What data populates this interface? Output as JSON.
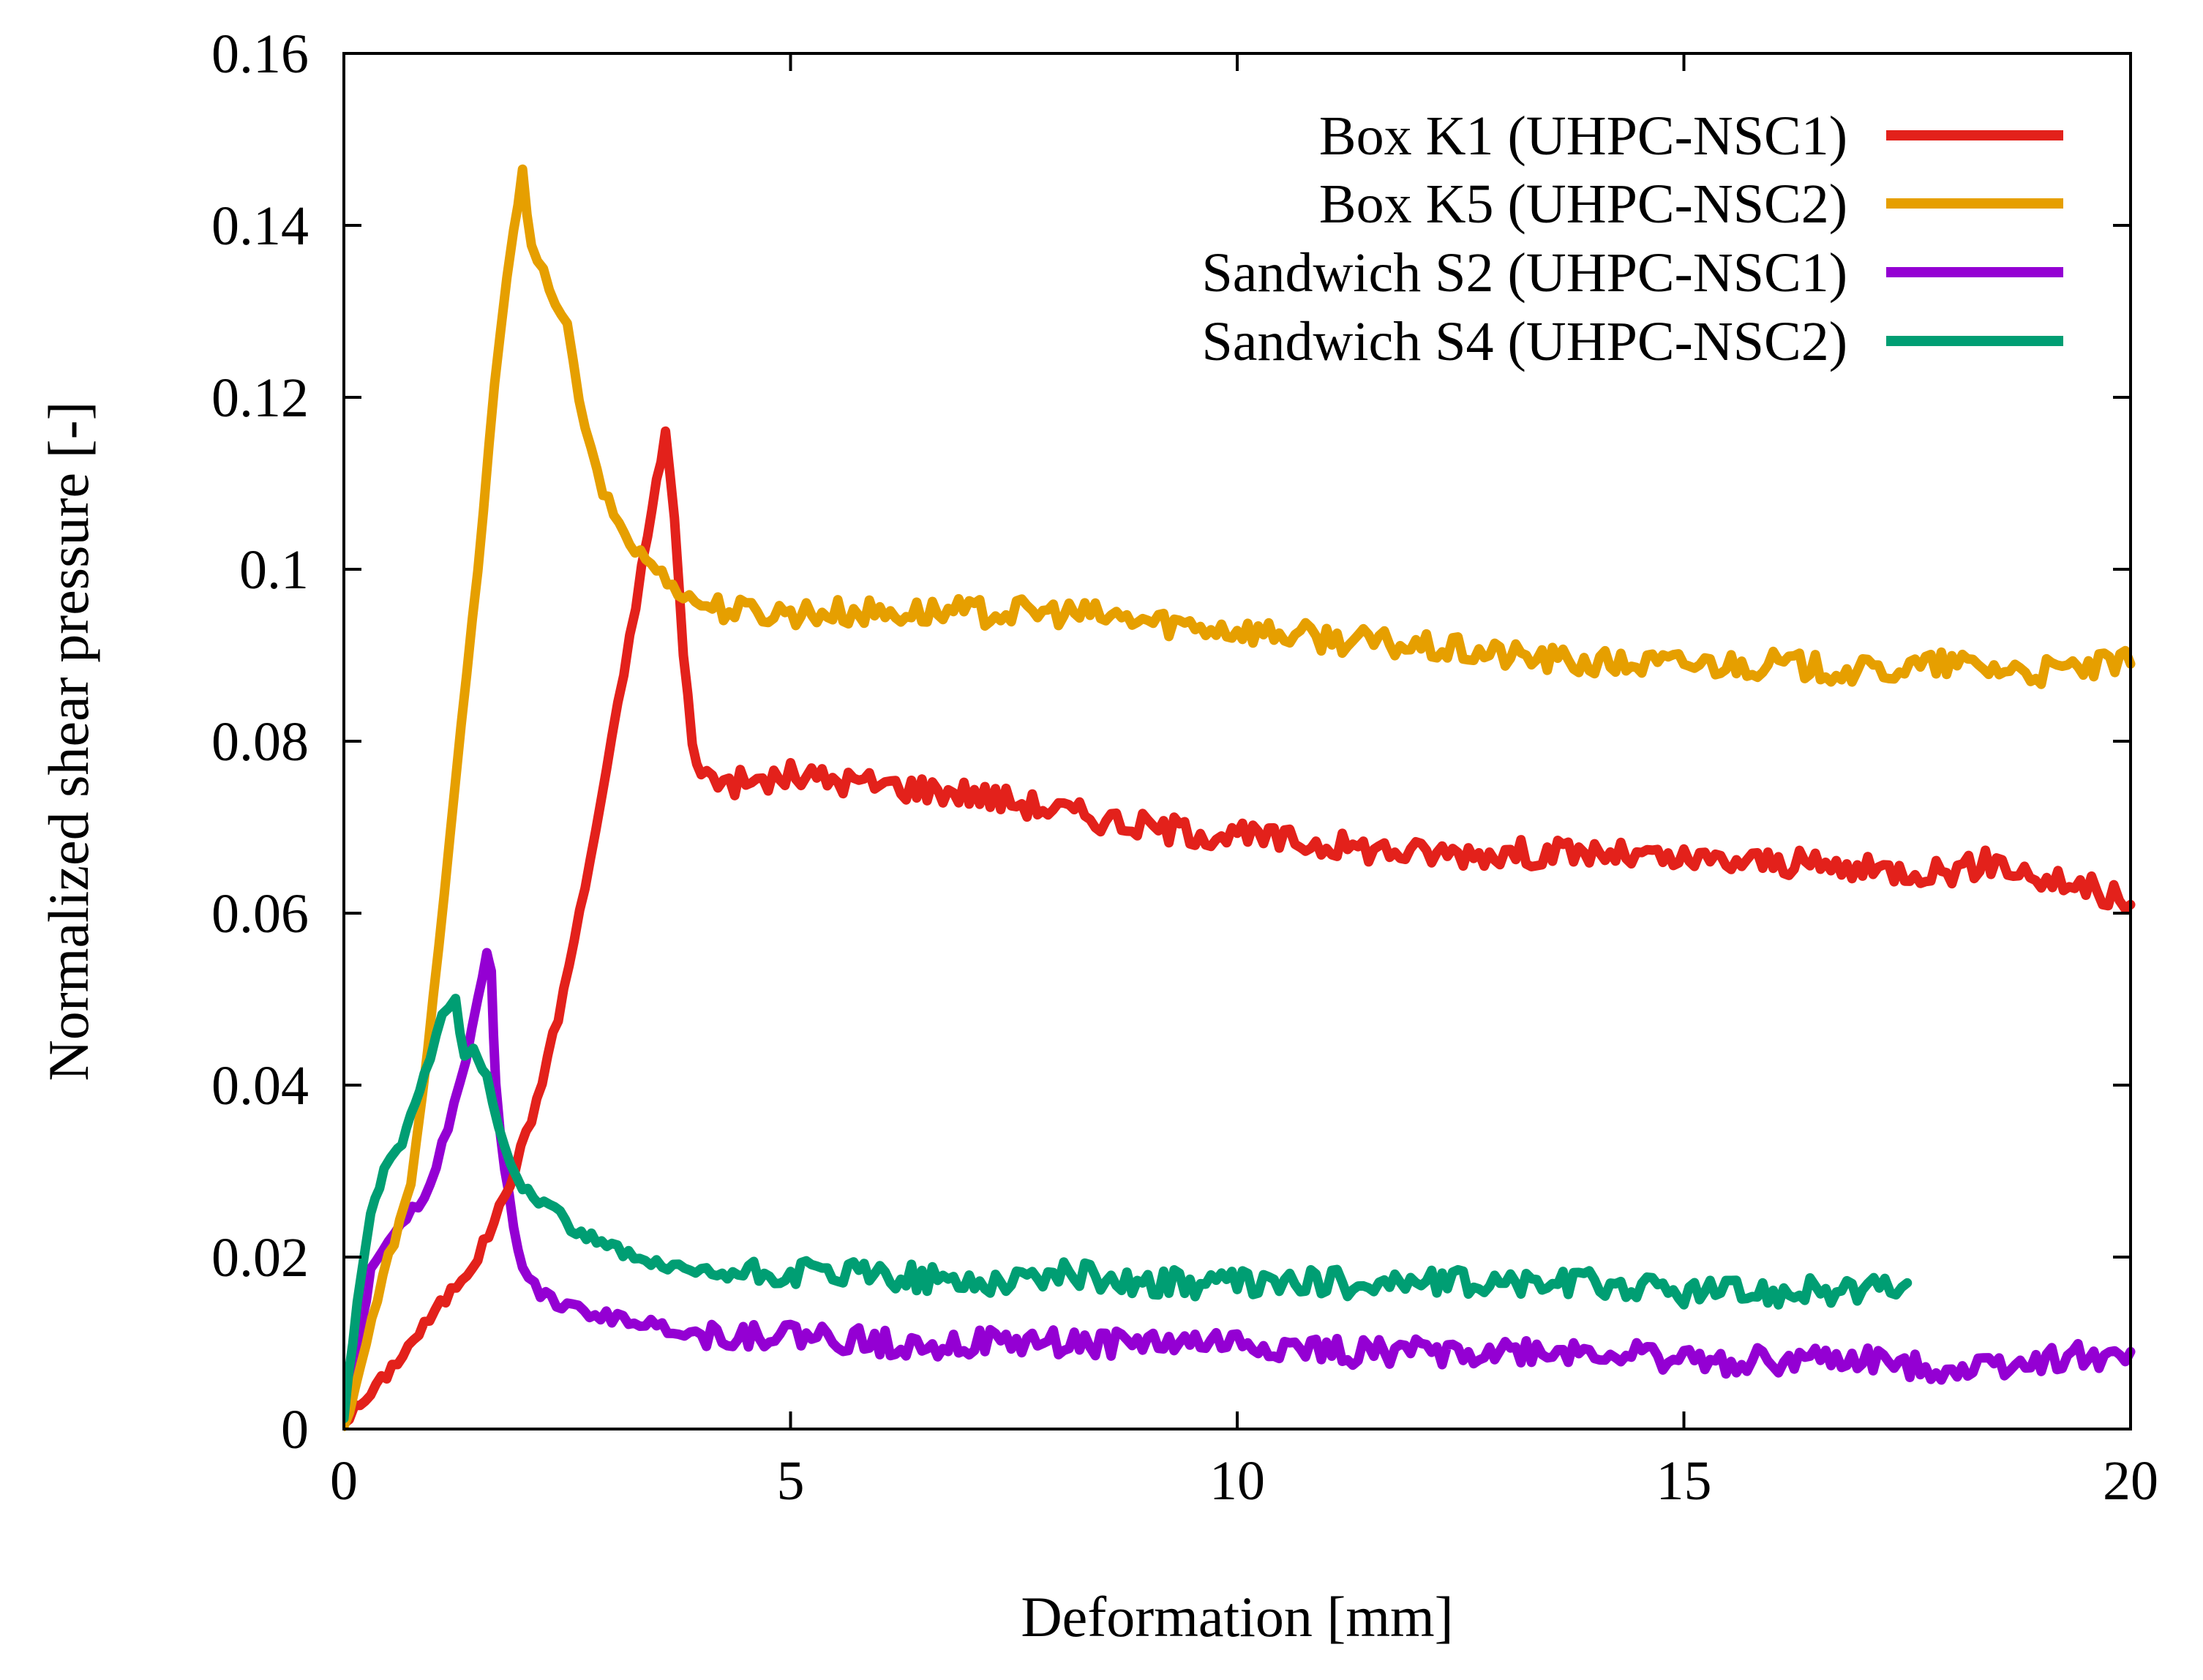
{
  "chart_data": {
    "type": "line",
    "title": "",
    "xlabel": "Deformation [mm]",
    "ylabel": "Normalized shear pressure [-]",
    "xlim": [
      0,
      20
    ],
    "ylim": [
      0,
      0.16
    ],
    "xticks": [
      0,
      5,
      10,
      15,
      20
    ],
    "xtick_labels": [
      "0",
      "5",
      "10",
      "15",
      "20"
    ],
    "yticks": [
      0,
      0.02,
      0.04,
      0.06,
      0.08,
      0.1,
      0.12,
      0.14,
      0.16
    ],
    "ytick_labels": [
      "0",
      "0.02",
      "0.04",
      "0.06",
      "0.08",
      "0.1",
      "0.12",
      "0.14",
      "0.16"
    ],
    "grid": false,
    "legend_position": "top-right",
    "series": [
      {
        "name": "Box K1 (UHPC-NSC1)",
        "color": "#e3211b",
        "x": [
          0,
          0.3,
          0.6,
          0.9,
          1.2,
          1.5,
          1.8,
          2.1,
          2.4,
          2.7,
          3.0,
          3.2,
          3.4,
          3.5,
          3.6,
          3.7,
          3.8,
          3.9,
          4.0,
          4.5,
          5.0,
          6.0,
          7.0,
          8.0,
          9.0,
          10.0,
          11.0,
          12.0,
          13.0,
          14.0,
          15.0,
          16.0,
          17.0,
          18.0,
          18.5,
          19.0,
          19.5,
          20.0
        ],
        "y": [
          0.001,
          0.004,
          0.008,
          0.012,
          0.016,
          0.02,
          0.027,
          0.036,
          0.048,
          0.063,
          0.08,
          0.092,
          0.104,
          0.11,
          0.116,
          0.106,
          0.09,
          0.08,
          0.076,
          0.075,
          0.076,
          0.075,
          0.074,
          0.072,
          0.07,
          0.069,
          0.068,
          0.067,
          0.067,
          0.067,
          0.066,
          0.066,
          0.065,
          0.065,
          0.066,
          0.064,
          0.063,
          0.061
        ]
      },
      {
        "name": "Box K5 (UHPC-NSC2)",
        "color": "#e69f00",
        "x": [
          0,
          0.25,
          0.5,
          0.75,
          1.0,
          1.25,
          1.5,
          1.75,
          1.9,
          2.0,
          2.1,
          2.3,
          2.5,
          2.7,
          2.9,
          3.2,
          3.5,
          3.8,
          4.0,
          4.5,
          5.0,
          6.0,
          7.0,
          8.0,
          9.0,
          10.0,
          11.0,
          12.0,
          13.0,
          14.0,
          15.0,
          16.0,
          17.0,
          18.0,
          19.0,
          20.0
        ],
        "y": [
          0,
          0.01,
          0.02,
          0.028,
          0.05,
          0.075,
          0.1,
          0.128,
          0.14,
          0.146,
          0.137,
          0.133,
          0.128,
          0.116,
          0.109,
          0.103,
          0.1,
          0.097,
          0.096,
          0.095,
          0.095,
          0.095,
          0.095,
          0.095,
          0.094,
          0.093,
          0.092,
          0.091,
          0.09,
          0.089,
          0.089,
          0.089,
          0.088,
          0.089,
          0.088,
          0.089
        ]
      },
      {
        "name": "Sandwich S2 (UHPC-NSC1)",
        "color": "#9400d3",
        "x": [
          0,
          0.15,
          0.3,
          0.5,
          0.7,
          0.9,
          1.1,
          1.3,
          1.5,
          1.6,
          1.65,
          1.7,
          1.8,
          1.9,
          2.0,
          2.2,
          2.5,
          3.0,
          3.5,
          4.0,
          5.0,
          6.0,
          7.0,
          8.0,
          9.0,
          10.0,
          11.0,
          12.0,
          13.0,
          14.0,
          15.0,
          16.0,
          17.0,
          18.0,
          19.0,
          20.0
        ],
        "y": [
          0.002,
          0.01,
          0.018,
          0.022,
          0.025,
          0.027,
          0.033,
          0.04,
          0.05,
          0.055,
          0.053,
          0.04,
          0.03,
          0.024,
          0.019,
          0.016,
          0.014,
          0.013,
          0.012,
          0.011,
          0.011,
          0.01,
          0.01,
          0.01,
          0.01,
          0.01,
          0.009,
          0.009,
          0.009,
          0.009,
          0.008,
          0.008,
          0.008,
          0.007,
          0.008,
          0.009
        ]
      },
      {
        "name": "Sandwich S4 (UHPC-NSC2)",
        "color": "#009e73",
        "x": [
          0,
          0.15,
          0.3,
          0.45,
          0.6,
          0.75,
          0.9,
          1.1,
          1.25,
          1.35,
          1.45,
          1.6,
          1.8,
          2.0,
          2.3,
          2.6,
          3.0,
          3.5,
          4.0,
          5.0,
          6.0,
          7.0,
          8.0,
          9.0,
          10.0,
          11.0,
          12.0,
          13.0,
          14.0,
          15.0,
          16.0,
          17.0,
          17.5
        ],
        "y": [
          0.001,
          0.015,
          0.025,
          0.03,
          0.032,
          0.036,
          0.041,
          0.048,
          0.05,
          0.043,
          0.044,
          0.041,
          0.033,
          0.028,
          0.026,
          0.023,
          0.021,
          0.019,
          0.018,
          0.018,
          0.018,
          0.017,
          0.018,
          0.017,
          0.017,
          0.017,
          0.017,
          0.017,
          0.017,
          0.016,
          0.016,
          0.016,
          0.017
        ]
      }
    ]
  }
}
